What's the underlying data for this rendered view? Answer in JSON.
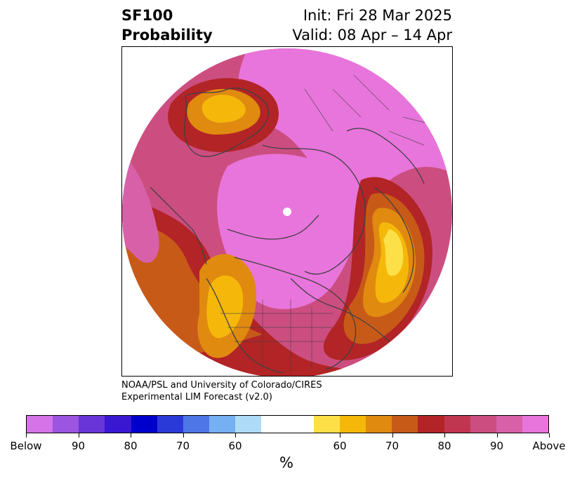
{
  "header": {
    "title_line1": "SF100",
    "title_line2": "Probability",
    "init": "Init: Fri 28 Mar 2025",
    "valid": "Valid: 08 Apr – 14 Apr"
  },
  "credit": {
    "line1": "NOAA/PSL and University of Colorado/CIRES",
    "line2": "Experimental LIM Forecast (v2.0)"
  },
  "colorbar": {
    "colors": [
      "#d673e8",
      "#9b55e0",
      "#6a35d8",
      "#3a18d2",
      "#0000cc",
      "#2a3ad8",
      "#4e76e6",
      "#74b0f2",
      "#aedcf8",
      "#ffffff",
      "#ffffff",
      "#fde048",
      "#f5b80a",
      "#e08a10",
      "#c85a18",
      "#b22426",
      "#c03550",
      "#cc4e80",
      "#d860a8",
      "#e875dc"
    ],
    "tick_labels": [
      "Below",
      "90",
      "80",
      "70",
      "60",
      "60",
      "70",
      "80",
      "90",
      "Above"
    ],
    "units": "%"
  },
  "map": {
    "projection": "north polar stereographic",
    "outline_color": "#404040",
    "regions": [
      {
        "name": "base",
        "color": "#cc4e80"
      },
      {
        "name": "arctic-center",
        "color": "#e875dc"
      },
      {
        "name": "europe-west",
        "color": "#b22426"
      },
      {
        "name": "europe-core",
        "color": "#f5b80a"
      },
      {
        "name": "north-america-band",
        "color": "#c85a18"
      },
      {
        "name": "north-america-core",
        "color": "#f5b80a"
      },
      {
        "name": "east-asia",
        "color": "#f5b80a"
      }
    ]
  }
}
